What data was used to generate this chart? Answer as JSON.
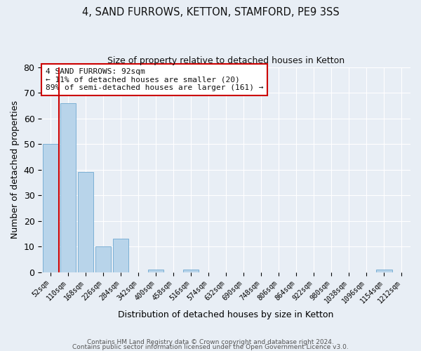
{
  "title": "4, SAND FURROWS, KETTON, STAMFORD, PE9 3SS",
  "subtitle": "Size of property relative to detached houses in Ketton",
  "xlabel": "Distribution of detached houses by size in Ketton",
  "ylabel": "Number of detached properties",
  "bar_labels": [
    "52sqm",
    "110sqm",
    "168sqm",
    "226sqm",
    "284sqm",
    "342sqm",
    "400sqm",
    "458sqm",
    "516sqm",
    "574sqm",
    "632sqm",
    "690sqm",
    "748sqm",
    "806sqm",
    "864sqm",
    "922sqm",
    "980sqm",
    "1038sqm",
    "1096sqm",
    "1154sqm",
    "1212sqm"
  ],
  "bar_values": [
    50,
    66,
    39,
    10,
    13,
    0,
    1,
    0,
    1,
    0,
    0,
    0,
    0,
    0,
    0,
    0,
    0,
    0,
    0,
    1,
    0
  ],
  "bar_color": "#b8d4ea",
  "bar_edge_color": "#6fa8d0",
  "property_line_color": "#cc0000",
  "annotation_title": "4 SAND FURROWS: 92sqm",
  "annotation_line1": "← 11% of detached houses are smaller (20)",
  "annotation_line2": "89% of semi-detached houses are larger (161) →",
  "annotation_box_color": "#cc0000",
  "ylim": [
    0,
    80
  ],
  "yticks": [
    0,
    10,
    20,
    30,
    40,
    50,
    60,
    70,
    80
  ],
  "footer1": "Contains HM Land Registry data © Crown copyright and database right 2024.",
  "footer2": "Contains public sector information licensed under the Open Government Licence v3.0.",
  "bg_color": "#e8eef5",
  "plot_bg_color": "#e8eef5",
  "grid_color": "#ffffff",
  "title_fontsize": 10.5,
  "subtitle_fontsize": 9
}
